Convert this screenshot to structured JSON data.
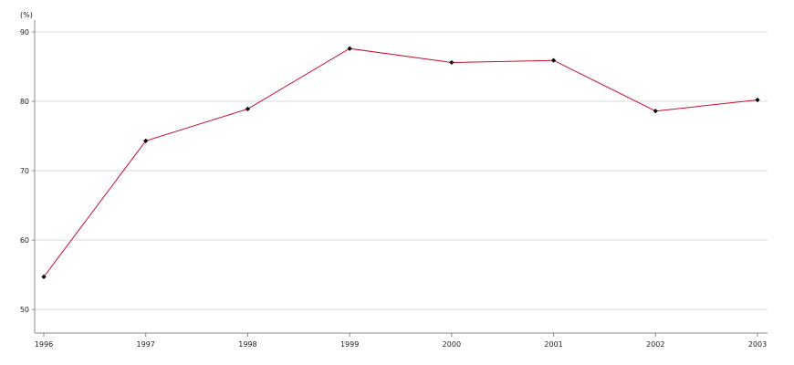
{
  "chart_data": {
    "type": "line",
    "title": "",
    "xlabel": "",
    "ylabel": "(%)",
    "categories": [
      "1996",
      "1997",
      "1998",
      "1999",
      "2000",
      "2001",
      "2002",
      "2003"
    ],
    "series": [
      {
        "values": [
          54.7,
          74.3,
          78.9,
          87.6,
          85.6,
          85.9,
          78.6,
          80.2
        ],
        "color": "#c8102e",
        "marker": "diamond",
        "marker_color": "#000000"
      }
    ],
    "ylim": [
      46.6,
      90
    ],
    "yticks": [
      50,
      60,
      70,
      80,
      90
    ],
    "grid": true,
    "grid_color": "#d9d9d9",
    "axis_color": "#888888",
    "legend": "none"
  }
}
